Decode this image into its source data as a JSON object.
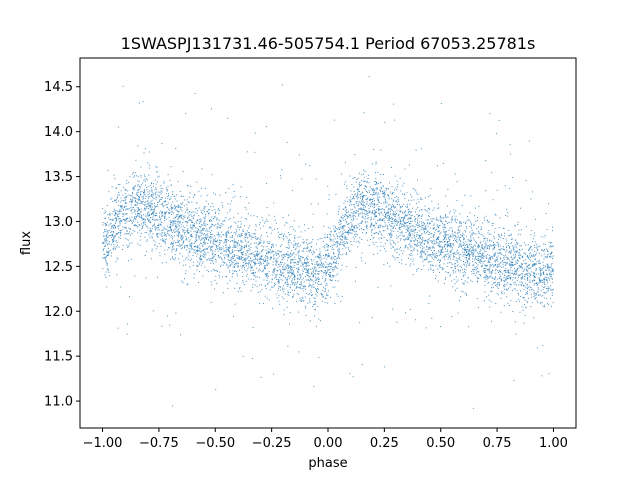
{
  "chart_data": {
    "type": "scatter",
    "title": "1SWASPJ131731.46-505754.1 Period 67053.25781s",
    "xlabel": "phase",
    "ylabel": "flux",
    "xlim": [
      -1.1,
      1.1
    ],
    "ylim": [
      10.7,
      14.82
    ],
    "x_ticks": [
      -1.0,
      -0.75,
      -0.5,
      -0.25,
      0.0,
      0.25,
      0.5,
      0.75,
      1.0
    ],
    "x_tick_labels": [
      "−1.00",
      "−0.75",
      "−0.50",
      "−0.25",
      "0.00",
      "0.25",
      "0.50",
      "0.75",
      "1.00"
    ],
    "y_ticks": [
      11.0,
      11.5,
      12.0,
      12.5,
      13.0,
      13.5,
      14.0,
      14.5
    ],
    "y_tick_labels": [
      "11.0",
      "11.5",
      "12.0",
      "12.5",
      "13.0",
      "13.5",
      "14.0",
      "14.5"
    ],
    "grid": false,
    "legend": "none",
    "point_color": "#1f77b4",
    "series": [
      {
        "x": [
          -1.0,
          -0.95,
          -0.9,
          -0.85,
          -0.8,
          -0.75,
          -0.7,
          -0.65,
          -0.6,
          -0.55,
          -0.5,
          -0.45,
          -0.4,
          -0.35,
          -0.3,
          -0.25,
          -0.2,
          -0.15,
          -0.1,
          -0.05,
          0.0,
          0.05,
          0.1,
          0.15,
          0.2,
          0.25,
          0.3,
          0.35,
          0.4,
          0.45,
          0.5,
          0.55,
          0.6,
          0.65,
          0.7,
          0.75,
          0.8,
          0.85,
          0.9,
          0.95,
          1.0
        ],
        "y": [
          12.75,
          12.95,
          13.08,
          13.15,
          13.15,
          13.08,
          13.0,
          12.93,
          12.87,
          12.82,
          12.77,
          12.72,
          12.68,
          12.64,
          12.6,
          12.56,
          12.52,
          12.48,
          12.44,
          12.42,
          12.5,
          12.78,
          13.05,
          13.15,
          13.15,
          13.08,
          13.0,
          12.93,
          12.87,
          12.82,
          12.77,
          12.72,
          12.68,
          12.64,
          12.6,
          12.56,
          12.52,
          12.48,
          12.45,
          12.43,
          12.5
        ],
        "scatter_std": 0.2,
        "approx_point_count": 6000
      }
    ]
  }
}
